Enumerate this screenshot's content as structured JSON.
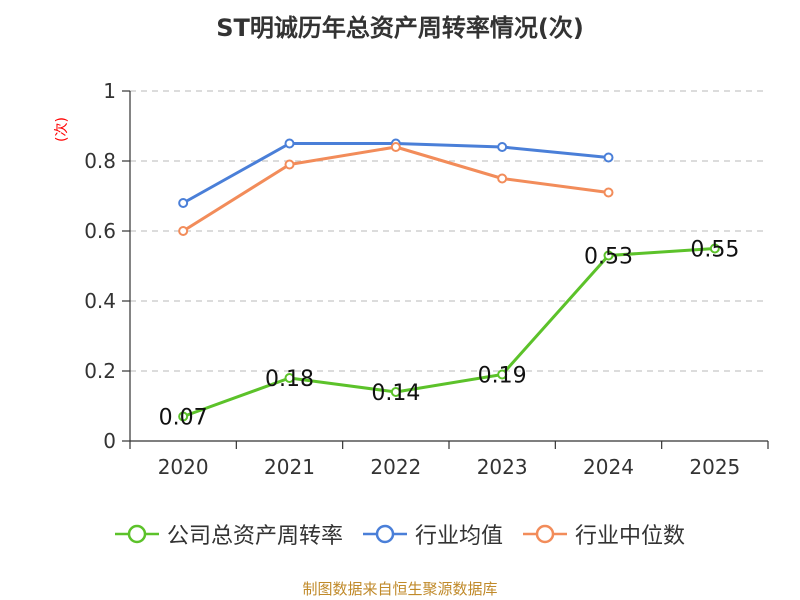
{
  "chart_data": {
    "type": "line",
    "title": "ST明诚历年总资产周转率情况(次)",
    "ylabel": "(次)",
    "categories": [
      "2020",
      "2021",
      "2022",
      "2023",
      "2024",
      "2025"
    ],
    "ylim": [
      0,
      1
    ],
    "yticks": [
      0,
      0.2,
      0.4,
      0.6,
      0.8,
      1
    ],
    "ytick_labels": [
      "0",
      "0.2",
      "0.4",
      "0.6",
      "0.8",
      "1"
    ],
    "grid": true,
    "legend_position": "bottom",
    "series": [
      {
        "name": "公司总资产周转率",
        "color": "#5cc22a",
        "values": [
          0.07,
          0.18,
          0.14,
          0.19,
          0.53,
          0.55
        ],
        "labels": [
          "0.07",
          "0.18",
          "0.14",
          "0.19",
          "0.53",
          "0.55"
        ]
      },
      {
        "name": "行业均值",
        "color": "#4a7fd8",
        "values": [
          0.68,
          0.85,
          0.85,
          0.84,
          0.81,
          null
        ]
      },
      {
        "name": "行业中位数",
        "color": "#f28c5a",
        "values": [
          0.6,
          0.79,
          0.84,
          0.75,
          0.71,
          null
        ]
      }
    ]
  },
  "source_text": "制图数据来自恒生聚源数据库"
}
